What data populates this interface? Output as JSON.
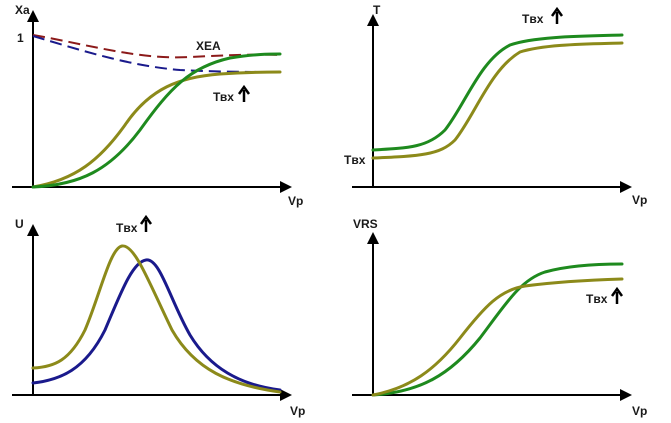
{
  "colors": {
    "green": "#1e8a1e",
    "olive": "#8c8a1a",
    "navy": "#1a1a8c",
    "darkred": "#8c1a1a",
    "axis": "#000000"
  },
  "panel_tl": {
    "y_label": "Xa",
    "x_label": "Vp",
    "tick_one": "1",
    "curve_label": "XEA",
    "annotation": "Твх",
    "annotation_icon": "arrow-up-icon"
  },
  "panel_tr": {
    "y_label": "T",
    "x_label": "Vp",
    "left_label": "Tвх",
    "annotation": "Tвх",
    "annotation_icon": "arrow-up-icon"
  },
  "panel_bl": {
    "y_label": "U",
    "x_label": "Vp",
    "annotation": "Tвх",
    "annotation_icon": "arrow-up-icon"
  },
  "panel_br": {
    "y_label": "VRS",
    "x_label": "Vp",
    "annotation": "Tвх",
    "annotation_icon": "arrow-up-icon"
  }
}
